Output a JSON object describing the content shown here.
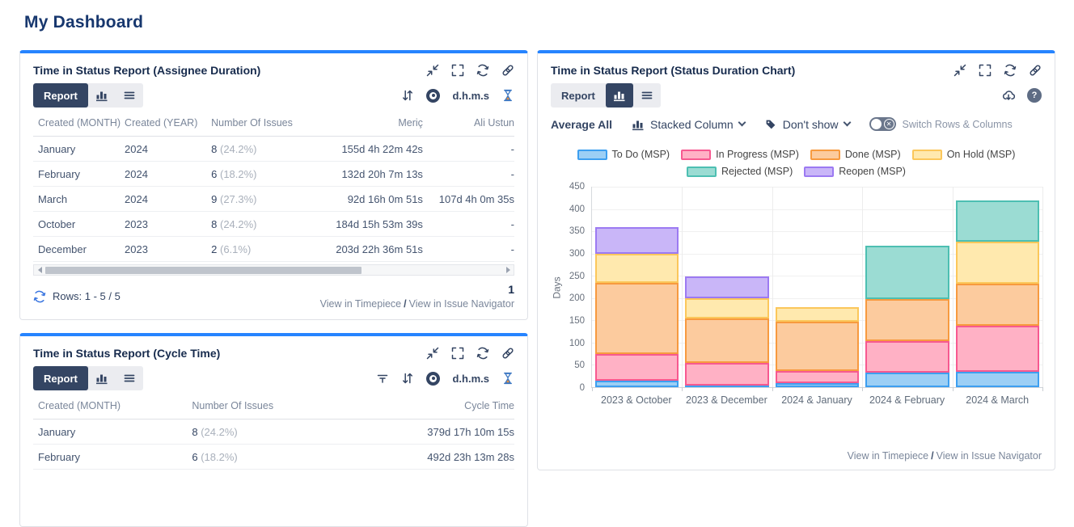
{
  "page": {
    "title": "My Dashboard"
  },
  "colors": {
    "accent_blue": "#2684FF",
    "navy": "#344563",
    "title_navy": "#172B4D",
    "muted_gray": "#7A869A",
    "hourglass_sand": "#E8913F"
  },
  "icons": {
    "gadget_header": [
      "collapse-icon",
      "fullscreen-icon",
      "refresh-icon",
      "link-icon"
    ],
    "toolbar": [
      "chart-icon",
      "menu-icon",
      "filter-icon",
      "sort-icon",
      "eye-icon",
      "hourglass-icon",
      "export-icon",
      "help-icon"
    ],
    "controls": [
      "tag-icon",
      "chevron-down-icon",
      "toggle-switch"
    ]
  },
  "gadget_assignee": {
    "title": "Time in Status Report (Assignee Duration)",
    "report_label": "Report",
    "unit": "d.h.m.s",
    "table": {
      "headers": [
        "Created (MONTH)",
        "Created (YEAR)",
        "Number Of Issues",
        "Meriç",
        "Ali Ustun"
      ],
      "rows": [
        [
          "January",
          "2024",
          "8",
          "(24.2%)",
          "155d 4h 22m 42s",
          "-"
        ],
        [
          "February",
          "2024",
          "6",
          "(18.2%)",
          "132d 20h 7m 13s",
          "-"
        ],
        [
          "March",
          "2024",
          "9",
          "(27.3%)",
          "92d 16h 0m 51s",
          "107d 4h 0m 35s"
        ],
        [
          "October",
          "2023",
          "8",
          "(24.2%)",
          "184d 15h 53m 39s",
          "-"
        ],
        [
          "December",
          "2023",
          "2",
          "(6.1%)",
          "203d 22h 36m 51s",
          "-"
        ]
      ]
    },
    "footer": {
      "rows_label": "Rows: 1 - 5 / 5",
      "page_number": "1",
      "link_timepiece": "View in Timepiece",
      "link_separator": "/",
      "link_navigator": "View in Issue Navigator"
    }
  },
  "gadget_cycle": {
    "title": "Time in Status Report (Cycle Time)",
    "report_label": "Report",
    "unit": "d.h.m.s",
    "table": {
      "headers": [
        "Created (MONTH)",
        "Number Of Issues",
        "Cycle Time"
      ],
      "rows": [
        [
          "January",
          "8",
          "(24.2%)",
          "379d 17h 10m 15s"
        ],
        [
          "February",
          "6",
          "(18.2%)",
          "492d 23h 13m 28s"
        ]
      ]
    }
  },
  "gadget_chart": {
    "title": "Time in Status Report (Status Duration Chart)",
    "report_label": "Report",
    "controls": {
      "average": "Average All",
      "chart_type": "Stacked Column",
      "label_mode": "Don't show",
      "switch_label": "Switch Rows & Columns"
    },
    "footer": {
      "link_timepiece": "View in Timepiece",
      "link_separator": "/",
      "link_navigator": "View in Issue Navigator"
    }
  },
  "chart_data": {
    "type": "bar",
    "stacked": true,
    "title": "",
    "xlabel": "",
    "ylabel": "Days",
    "ylim": [
      0,
      450
    ],
    "ytick_step": 50,
    "grid": true,
    "legend_position": "top",
    "categories": [
      "2023 & October",
      "2023 & December",
      "2024 & January",
      "2024 & February",
      "2024 & March"
    ],
    "series": [
      {
        "name": "To Do (MSP)",
        "fill": "#9CCFF5",
        "border": "#3D9FF0",
        "values": [
          15,
          4,
          10,
          33,
          35
        ]
      },
      {
        "name": "In Progress (MSP)",
        "fill": "#FFB1C5",
        "border": "#F75990",
        "values": [
          60,
          51,
          27,
          70,
          103
        ]
      },
      {
        "name": "Done (MSP)",
        "fill": "#FCCB9E",
        "border": "#F79A3F",
        "values": [
          160,
          100,
          110,
          95,
          94
        ]
      },
      {
        "name": "On Hold (MSP)",
        "fill": "#FFE9AE",
        "border": "#FBC75B",
        "values": [
          65,
          45,
          32,
          0,
          95
        ]
      },
      {
        "name": "Rejected (MSP)",
        "fill": "#9BDCD3",
        "border": "#4DBFB2",
        "values": [
          0,
          0,
          0,
          119,
          93
        ]
      },
      {
        "name": "Reopen (MSP)",
        "fill": "#C9B6F8",
        "border": "#9C7AF2",
        "values": [
          60,
          48,
          0,
          0,
          0
        ]
      }
    ]
  }
}
